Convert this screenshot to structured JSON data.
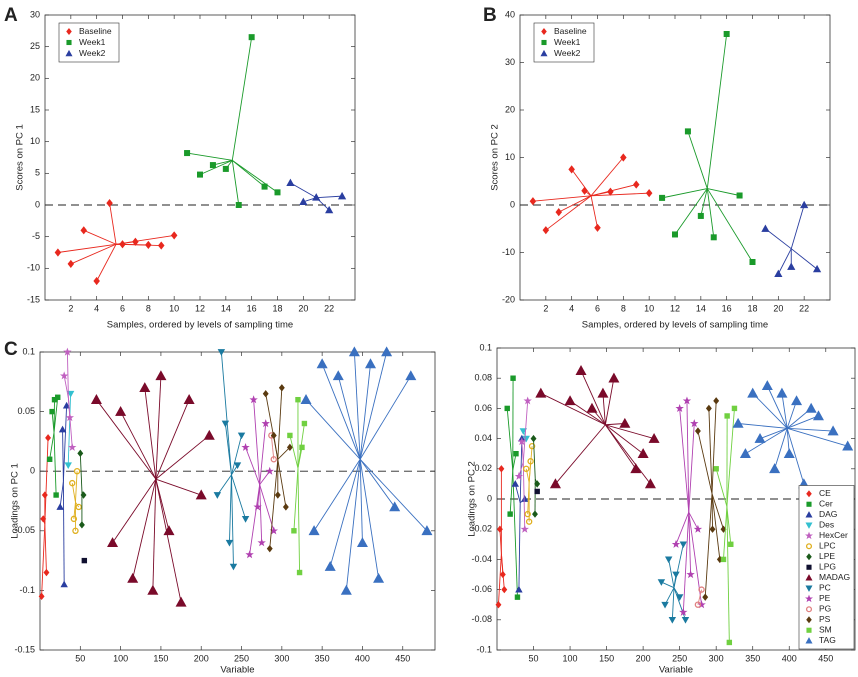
{
  "chart_data": [
    {
      "type": "scatter",
      "label": "A",
      "xlabel": "Samples, ordered by levels of sampling time",
      "ylabel": "Scores on PC 1",
      "xlim": [
        0,
        24
      ],
      "ylim": [
        -15,
        30
      ],
      "xticks": [
        2,
        4,
        6,
        8,
        10,
        12,
        14,
        16,
        18,
        20,
        22
      ],
      "yticks": [
        -15,
        -10,
        -5,
        0,
        5,
        10,
        15,
        20,
        25,
        30
      ],
      "zero_line": true,
      "legend": "upper left",
      "series": [
        {
          "name": "Baseline",
          "color": "#e8281e",
          "marker": "diamond",
          "x": [
            1,
            2,
            3,
            4,
            5,
            6,
            7,
            8,
            9,
            10
          ],
          "values": [
            -7.5,
            -9.3,
            -4,
            -12,
            0.3,
            -6.2,
            -5.8,
            -6.3,
            -6.4,
            -4.8
          ]
        },
        {
          "name": "Week1",
          "color": "#1a9a2a",
          "marker": "square",
          "x": [
            11,
            12,
            13,
            14,
            15,
            16,
            17,
            18
          ],
          "values": [
            8.2,
            4.8,
            6.3,
            5.7,
            0,
            26.5,
            2.9,
            2
          ]
        },
        {
          "name": "Week2",
          "color": "#2a3ea0",
          "marker": "triangle",
          "x": [
            19,
            20,
            21,
            22,
            23
          ],
          "values": [
            3.5,
            0.5,
            1.2,
            -0.8,
            1.4
          ]
        }
      ]
    },
    {
      "type": "scatter",
      "label": "B",
      "xlabel": "Samples, ordered by levels of sampling time",
      "ylabel": "Scores on PC 2",
      "xlim": [
        0,
        24
      ],
      "ylim": [
        -20,
        40
      ],
      "xticks": [
        2,
        4,
        6,
        8,
        10,
        12,
        14,
        16,
        18,
        20,
        22
      ],
      "yticks": [
        -20,
        -10,
        0,
        10,
        20,
        30,
        40
      ],
      "zero_line": true,
      "legend": "upper left",
      "series": [
        {
          "name": "Baseline",
          "color": "#e8281e",
          "marker": "diamond",
          "x": [
            1,
            2,
            3,
            4,
            5,
            6,
            7,
            8,
            9,
            10
          ],
          "values": [
            0.8,
            -5.3,
            -1.5,
            7.5,
            3,
            -4.8,
            2.8,
            10,
            4.3,
            2.5
          ]
        },
        {
          "name": "Week1",
          "color": "#1a9a2a",
          "marker": "square",
          "x": [
            11,
            12,
            13,
            14,
            15,
            16,
            17,
            18
          ],
          "values": [
            1.5,
            -6.2,
            15.5,
            -2.3,
            -6.8,
            36,
            2,
            -12
          ]
        },
        {
          "name": "Week2",
          "color": "#2a3ea0",
          "marker": "triangle",
          "x": [
            19,
            20,
            21,
            22,
            23
          ],
          "values": [
            -5,
            -14.5,
            -13,
            0,
            -13.5
          ]
        }
      ]
    },
    {
      "type": "scatter",
      "label": "C",
      "xlabel": "Variable",
      "ylabel": "Loadings on PC 1",
      "xlim": [
        0,
        490
      ],
      "ylim": [
        -0.15,
        0.1
      ],
      "xticks": [
        50,
        100,
        150,
        200,
        250,
        300,
        350,
        400,
        450
      ],
      "yticks": [
        -0.15,
        -0.1,
        -0.05,
        0,
        0.05,
        0.1
      ],
      "zero_line": true,
      "series": [
        {
          "color": "#e8281e",
          "marker": "diamond",
          "x": [
            2,
            4,
            6,
            8,
            10
          ],
          "values": [
            -0.105,
            -0.04,
            -0.02,
            -0.085,
            0.028
          ]
        },
        {
          "color": "#1a9a2a",
          "marker": "square",
          "x": [
            12,
            15,
            18,
            20,
            22
          ],
          "values": [
            0.01,
            0.05,
            0.06,
            -0.02,
            0.062
          ]
        },
        {
          "color": "#2a3ea0",
          "marker": "triangle",
          "x": [
            25,
            28,
            30,
            33
          ],
          "values": [
            -0.03,
            0.035,
            -0.095,
            0.055
          ]
        },
        {
          "color": "#33c0d0",
          "marker": "triangle-down",
          "x": [
            35,
            38
          ],
          "values": [
            0.005,
            0.065
          ]
        },
        {
          "color": "#c060c0",
          "marker": "star",
          "x": [
            30,
            34,
            37,
            40
          ],
          "values": [
            0.08,
            0.1,
            0.045,
            0.02
          ]
        },
        {
          "color": "#e0b020",
          "marker": "circle",
          "x": [
            40,
            42,
            44,
            46,
            48
          ],
          "values": [
            -0.01,
            -0.04,
            -0.05,
            0,
            -0.03
          ]
        },
        {
          "color": "#1a5a1a",
          "marker": "diamond",
          "x": [
            50,
            52,
            54
          ],
          "values": [
            0.015,
            -0.045,
            -0.02
          ]
        },
        {
          "color": "#101030",
          "marker": "square",
          "x": [
            55
          ],
          "values": [
            -0.075
          ]
        },
        {
          "color": "#7a0a2a",
          "marker": "triangle",
          "x": [
            70,
            90,
            100,
            115,
            130,
            140,
            150,
            160,
            175,
            185,
            200,
            210
          ],
          "values": [
            0.06,
            -0.06,
            0.05,
            -0.09,
            0.07,
            -0.1,
            0.08,
            -0.05,
            -0.11,
            0.06,
            -0.02,
            0.03
          ]
        },
        {
          "color": "#1a7aa0",
          "marker": "triangle-down",
          "x": [
            220,
            225,
            230,
            235,
            240,
            245,
            250,
            255
          ],
          "values": [
            -0.02,
            0.1,
            0.04,
            -0.06,
            -0.08,
            0.005,
            0.03,
            -0.04
          ]
        },
        {
          "color": "#b040b0",
          "marker": "star",
          "x": [
            255,
            260,
            265,
            270,
            275,
            280,
            285,
            290
          ],
          "values": [
            0.02,
            -0.07,
            0.06,
            -0.03,
            -0.06,
            0.04,
            0,
            -0.05
          ]
        },
        {
          "color": "#e08080",
          "marker": "circle",
          "x": [
            287,
            290
          ],
          "values": [
            0.03,
            0.01
          ]
        },
        {
          "color": "#5a3a10",
          "marker": "diamond",
          "x": [
            280,
            285,
            290,
            295,
            300,
            305,
            310
          ],
          "values": [
            0.065,
            -0.065,
            0.03,
            -0.02,
            0.07,
            -0.03,
            0.02
          ]
        },
        {
          "color": "#70d040",
          "marker": "square",
          "x": [
            310,
            315,
            320,
            322,
            325,
            328
          ],
          "values": [
            0.03,
            -0.05,
            0.06,
            -0.085,
            0.02,
            0.04
          ]
        },
        {
          "color": "#3a70c0",
          "marker": "triangle",
          "x": [
            330,
            340,
            350,
            360,
            370,
            380,
            390,
            400,
            410,
            420,
            430,
            440,
            460,
            480
          ],
          "values": [
            0.06,
            -0.05,
            0.09,
            -0.08,
            0.08,
            -0.1,
            0.1,
            -0.06,
            0.09,
            -0.09,
            0.1,
            -0.03,
            0.08,
            -0.05
          ]
        }
      ]
    },
    {
      "type": "scatter",
      "xlabel": "Variable",
      "ylabel": "Loadings on PC 2",
      "xlim": [
        0,
        490
      ],
      "ylim": [
        -0.1,
        0.1
      ],
      "xticks": [
        50,
        100,
        150,
        200,
        250,
        300,
        350,
        400,
        450
      ],
      "yticks": [
        -0.1,
        -0.08,
        -0.06,
        -0.04,
        -0.02,
        0,
        0.02,
        0.04,
        0.06,
        0.08,
        0.1
      ],
      "zero_line": true,
      "legend": "lower right",
      "series": [
        {
          "name": "CE",
          "color": "#e8281e",
          "marker": "diamond",
          "x": [
            2,
            4,
            6,
            8,
            10
          ],
          "values": [
            -0.07,
            -0.02,
            0.02,
            -0.05,
            -0.06
          ]
        },
        {
          "name": "Cer",
          "color": "#1a9a2a",
          "marker": "square",
          "x": [
            14,
            18,
            22,
            26,
            28
          ],
          "values": [
            0.06,
            -0.01,
            0.08,
            0.03,
            -0.065
          ]
        },
        {
          "name": "DAG",
          "color": "#2a3ea0",
          "marker": "triangle",
          "x": [
            25,
            30,
            34,
            38
          ],
          "values": [
            0.01,
            -0.06,
            0.04,
            0
          ]
        },
        {
          "name": "Des",
          "color": "#33c0d0",
          "marker": "triangle-down",
          "x": [
            36,
            40
          ],
          "values": [
            0.045,
            0.04
          ]
        },
        {
          "name": "HexCer",
          "color": "#c060c0",
          "marker": "star",
          "x": [
            30,
            34,
            38,
            42
          ],
          "values": [
            0.015,
            0.038,
            -0.02,
            0.065
          ]
        },
        {
          "name": "LPC",
          "color": "#e0b020",
          "marker": "circle",
          "x": [
            40,
            42,
            44,
            46,
            48
          ],
          "values": [
            0.02,
            -0.01,
            -0.015,
            0.025,
            0.035
          ]
        },
        {
          "name": "LPE",
          "color": "#1a5a1a",
          "marker": "diamond",
          "x": [
            50,
            52,
            55
          ],
          "values": [
            0.04,
            -0.01,
            0.01
          ]
        },
        {
          "name": "LPG",
          "color": "#101030",
          "marker": "square",
          "x": [
            55
          ],
          "values": [
            0.005
          ]
        },
        {
          "name": "MADAG",
          "color": "#7a0a2a",
          "marker": "triangle",
          "x": [
            60,
            80,
            100,
            115,
            130,
            145,
            160,
            175,
            190,
            200,
            210,
            215
          ],
          "values": [
            0.07,
            0.01,
            0.065,
            0.085,
            0.06,
            0.07,
            0.08,
            0.05,
            0.02,
            0.03,
            0.01,
            0.04
          ]
        },
        {
          "name": "PC",
          "color": "#1a7aa0",
          "marker": "triangle-down",
          "x": [
            225,
            230,
            235,
            240,
            245,
            250,
            255,
            258
          ],
          "values": [
            -0.055,
            -0.07,
            -0.04,
            -0.08,
            -0.05,
            -0.065,
            -0.03,
            -0.08
          ]
        },
        {
          "name": "PE",
          "color": "#b040b0",
          "marker": "star",
          "x": [
            245,
            250,
            255,
            260,
            265,
            270,
            275,
            280
          ],
          "values": [
            -0.03,
            0.06,
            -0.075,
            0.065,
            -0.05,
            0.05,
            -0.02,
            -0.07
          ]
        },
        {
          "name": "PG",
          "color": "#e08080",
          "marker": "circle",
          "x": [
            275,
            280
          ],
          "values": [
            -0.07,
            -0.06
          ]
        },
        {
          "name": "PS",
          "color": "#5a3a10",
          "marker": "diamond",
          "x": [
            275,
            285,
            290,
            295,
            300,
            305,
            310
          ],
          "values": [
            0.045,
            -0.065,
            0.06,
            -0.02,
            0.065,
            -0.04,
            -0.02
          ]
        },
        {
          "name": "SM",
          "color": "#70d040",
          "marker": "square",
          "x": [
            300,
            310,
            315,
            318,
            320,
            325
          ],
          "values": [
            0.02,
            -0.04,
            0.055,
            -0.095,
            -0.03,
            0.06
          ]
        },
        {
          "name": "TAG",
          "color": "#3a70c0",
          "marker": "triangle",
          "x": [
            330,
            340,
            350,
            360,
            370,
            380,
            390,
            400,
            410,
            420,
            430,
            440,
            460,
            480
          ],
          "values": [
            0.05,
            0.03,
            0.07,
            0.04,
            0.075,
            0.02,
            0.07,
            0.03,
            0.065,
            0.01,
            0.06,
            0.055,
            0.045,
            0.035
          ]
        }
      ]
    }
  ]
}
